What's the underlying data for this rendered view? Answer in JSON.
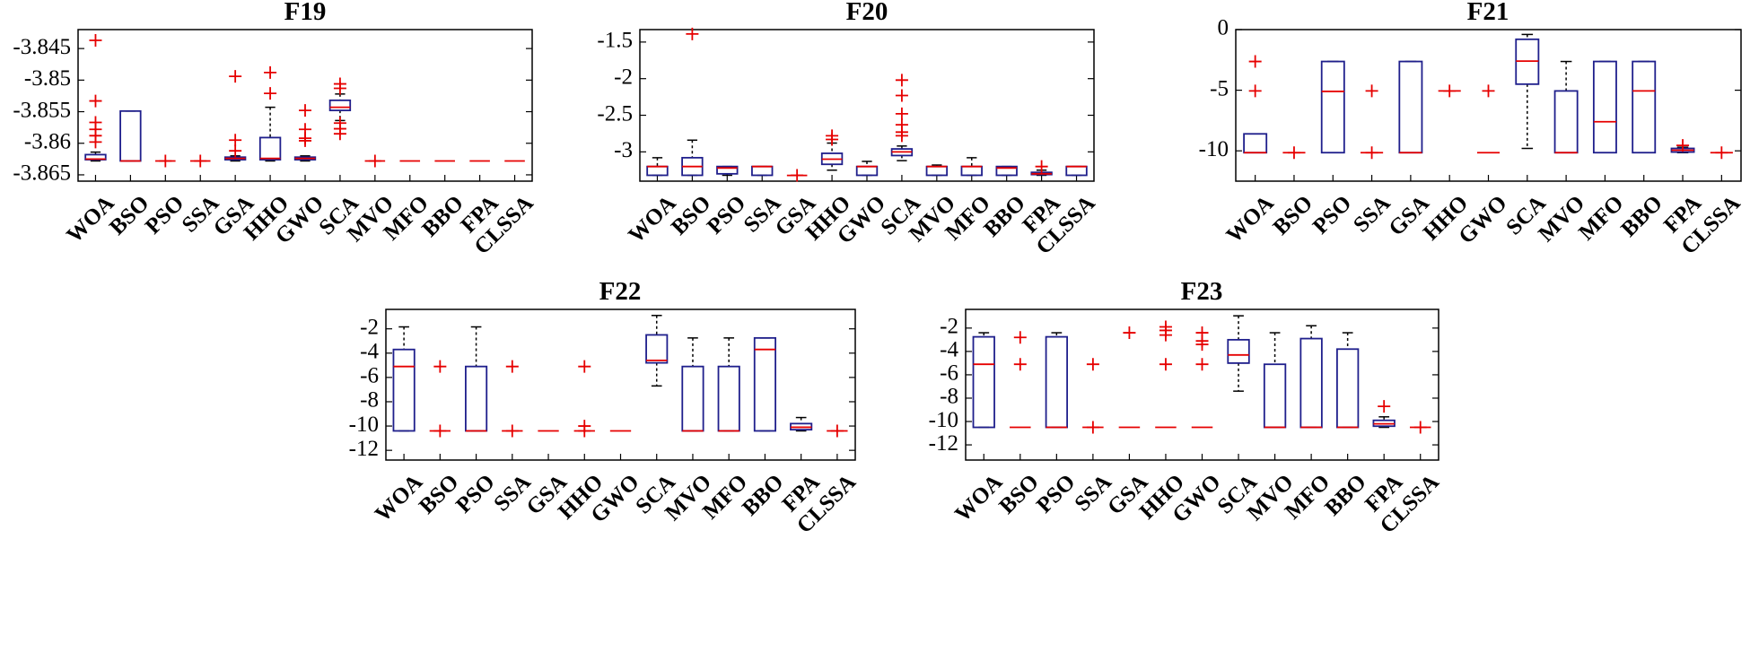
{
  "chart_data": [
    {
      "type": "boxplot",
      "title": "F19",
      "categories": [
        "WOA",
        "BSO",
        "PSO",
        "SSA",
        "GSA",
        "HHO",
        "GWO",
        "SCA",
        "MVO",
        "MFO",
        "BBO",
        "FPA",
        "CLSSA"
      ],
      "ylim": [
        -3.866,
        -3.842
      ],
      "yticks": [
        -3.845,
        -3.85,
        -3.855,
        -3.86,
        -3.865
      ],
      "ytick_labels": [
        "-3.845",
        "-3.85",
        "-3.855",
        "-3.86",
        "-3.865"
      ],
      "boxes": [
        {
          "q1": -3.8626,
          "med": -3.8625,
          "q3": -3.8618,
          "wlo": -3.8628,
          "whi": -3.8614,
          "out": [
            -3.8437,
            -3.8533,
            -3.8567,
            -3.8578,
            -3.8588,
            -3.8598
          ]
        },
        {
          "q1": -3.8628,
          "med": -3.8628,
          "q3": -3.8549,
          "wlo": -3.8628,
          "whi": -3.8549,
          "out": []
        },
        {
          "q1": -3.8628,
          "med": -3.8628,
          "q3": -3.8628,
          "wlo": -3.8628,
          "whi": -3.8628,
          "out": [
            -3.8628
          ]
        },
        {
          "q1": -3.8628,
          "med": -3.8628,
          "q3": -3.8628,
          "wlo": -3.8628,
          "whi": -3.8628,
          "out": [
            -3.8628
          ]
        },
        {
          "q1": -3.8626,
          "med": -3.8624,
          "q3": -3.8622,
          "wlo": -3.8628,
          "whi": -3.862,
          "out": [
            -3.8494,
            -3.8595,
            -3.8612
          ]
        },
        {
          "q1": -3.8626,
          "med": -3.8624,
          "q3": -3.8591,
          "wlo": -3.8628,
          "whi": -3.8543,
          "out": [
            -3.8488,
            -3.8521
          ]
        },
        {
          "q1": -3.8626,
          "med": -3.8624,
          "q3": -3.8622,
          "wlo": -3.8628,
          "whi": -3.862,
          "out": [
            -3.8548,
            -3.8578,
            -3.8592,
            -3.8596
          ]
        },
        {
          "q1": -3.8548,
          "med": -3.8543,
          "q3": -3.8532,
          "wlo": -3.8564,
          "whi": -3.8522,
          "out": [
            -3.8506,
            -3.8513,
            -3.8568,
            -3.8577,
            -3.8585
          ]
        },
        {
          "q1": -3.8628,
          "med": -3.8628,
          "q3": -3.8628,
          "wlo": -3.8628,
          "whi": -3.8628,
          "out": [
            -3.8628
          ]
        },
        {
          "q1": -3.8628,
          "med": -3.8628,
          "q3": -3.8628,
          "wlo": -3.8628,
          "whi": -3.8628,
          "out": []
        },
        {
          "q1": -3.8628,
          "med": -3.8628,
          "q3": -3.8628,
          "wlo": -3.8628,
          "whi": -3.8628,
          "out": []
        },
        {
          "q1": -3.8628,
          "med": -3.8628,
          "q3": -3.8628,
          "wlo": -3.8628,
          "whi": -3.8628,
          "out": []
        },
        {
          "q1": -3.8628,
          "med": -3.8628,
          "q3": -3.8628,
          "wlo": -3.8628,
          "whi": -3.8628,
          "out": []
        }
      ]
    },
    {
      "type": "boxplot",
      "title": "F20",
      "categories": [
        "WOA",
        "BSO",
        "PSO",
        "SSA",
        "GSA",
        "HHO",
        "GWO",
        "SCA",
        "MVO",
        "MFO",
        "BBO",
        "FPA",
        "CLSSA"
      ],
      "ylim": [
        -3.4,
        -1.33
      ],
      "yticks": [
        -1.5,
        -2,
        -2.5,
        -3
      ],
      "ytick_labels": [
        "-1.5",
        "-2",
        "-2.5",
        "-3"
      ],
      "boxes": [
        {
          "q1": -3.32,
          "med": -3.2,
          "q3": -3.2,
          "wlo": -3.32,
          "whi": -3.08,
          "out": []
        },
        {
          "q1": -3.32,
          "med": -3.2,
          "q3": -3.08,
          "wlo": -3.32,
          "whi": -2.84,
          "out": [
            -1.39
          ]
        },
        {
          "q1": -3.3,
          "med": -3.22,
          "q3": -3.2,
          "wlo": -3.32,
          "whi": -3.2,
          "out": []
        },
        {
          "q1": -3.32,
          "med": -3.2,
          "q3": -3.2,
          "wlo": -3.32,
          "whi": -3.2,
          "out": []
        },
        {
          "q1": -3.322,
          "med": -3.322,
          "q3": -3.322,
          "wlo": -3.322,
          "whi": -3.322,
          "out": [
            -3.32
          ]
        },
        {
          "q1": -3.17,
          "med": -3.1,
          "q3": -3.02,
          "wlo": -3.25,
          "whi": -2.88,
          "out": [
            -2.78,
            -2.83
          ]
        },
        {
          "q1": -3.32,
          "med": -3.2,
          "q3": -3.2,
          "wlo": -3.32,
          "whi": -3.13,
          "out": []
        },
        {
          "q1": -3.05,
          "med": -3.0,
          "q3": -2.96,
          "wlo": -3.12,
          "whi": -2.92,
          "out": [
            -2.02,
            -2.23,
            -2.48,
            -2.63,
            -2.73,
            -2.78
          ]
        },
        {
          "q1": -3.32,
          "med": -3.2,
          "q3": -3.2,
          "wlo": -3.32,
          "whi": -3.18,
          "out": []
        },
        {
          "q1": -3.32,
          "med": -3.2,
          "q3": -3.2,
          "wlo": -3.32,
          "whi": -3.08,
          "out": []
        },
        {
          "q1": -3.32,
          "med": -3.22,
          "q3": -3.2,
          "wlo": -3.32,
          "whi": -3.2,
          "out": []
        },
        {
          "q1": -3.31,
          "med": -3.3,
          "q3": -3.28,
          "wlo": -3.32,
          "whi": -3.25,
          "out": [
            -3.2
          ]
        },
        {
          "q1": -3.32,
          "med": -3.2,
          "q3": -3.2,
          "wlo": -3.32,
          "whi": -3.2,
          "out": []
        }
      ]
    },
    {
      "type": "boxplot",
      "title": "F21",
      "categories": [
        "WOA",
        "BSO",
        "PSO",
        "SSA",
        "GSA",
        "HHO",
        "GWO",
        "SCA",
        "MVO",
        "MFO",
        "BBO",
        "FPA",
        "CLSSA"
      ],
      "ylim": [
        -12.5,
        0
      ],
      "yticks": [
        0,
        -5,
        -10
      ],
      "ytick_labels": [
        "0",
        "-5",
        "-10"
      ],
      "boxes": [
        {
          "q1": -10.15,
          "med": -10.15,
          "q3": -8.6,
          "wlo": -10.15,
          "whi": -8.6,
          "out": [
            -2.63,
            -5.06
          ]
        },
        {
          "q1": -10.15,
          "med": -10.15,
          "q3": -10.15,
          "wlo": -10.15,
          "whi": -10.15,
          "out": [
            -10.15
          ]
        },
        {
          "q1": -10.15,
          "med": -5.1,
          "q3": -2.63,
          "wlo": -10.15,
          "whi": -2.63,
          "out": []
        },
        {
          "q1": -10.15,
          "med": -10.15,
          "q3": -10.15,
          "wlo": -10.15,
          "whi": -10.15,
          "out": [
            -5.06,
            -10.15
          ]
        },
        {
          "q1": -10.15,
          "med": -10.15,
          "q3": -2.63,
          "wlo": -10.15,
          "whi": -2.63,
          "out": []
        },
        {
          "q1": -5.06,
          "med": -5.06,
          "q3": -5.06,
          "wlo": -5.06,
          "whi": -5.06,
          "out": [
            -5.06
          ]
        },
        {
          "q1": -10.15,
          "med": -10.15,
          "q3": -10.15,
          "wlo": -10.15,
          "whi": -10.15,
          "out": [
            -5.06
          ]
        },
        {
          "q1": -4.5,
          "med": -2.6,
          "q3": -0.8,
          "wlo": -9.8,
          "whi": -0.4,
          "out": []
        },
        {
          "q1": -10.15,
          "med": -10.15,
          "q3": -5.06,
          "wlo": -10.15,
          "whi": -2.63,
          "out": []
        },
        {
          "q1": -10.15,
          "med": -7.6,
          "q3": -2.63,
          "wlo": -10.15,
          "whi": -2.63,
          "out": []
        },
        {
          "q1": -10.15,
          "med": -5.06,
          "q3": -2.63,
          "wlo": -10.15,
          "whi": -2.63,
          "out": []
        },
        {
          "q1": -10.1,
          "med": -9.95,
          "q3": -9.8,
          "wlo": -10.15,
          "whi": -9.7,
          "out": [
            -9.55
          ]
        },
        {
          "q1": -10.15,
          "med": -10.15,
          "q3": -10.15,
          "wlo": -10.15,
          "whi": -10.15,
          "out": [
            -10.15
          ]
        }
      ]
    },
    {
      "type": "boxplot",
      "title": "F22",
      "categories": [
        "WOA",
        "BSO",
        "PSO",
        "SSA",
        "GSA",
        "HHO",
        "GWO",
        "SCA",
        "MVO",
        "MFO",
        "BBO",
        "FPA",
        "CLSSA"
      ],
      "ylim": [
        -12.8,
        -0.4
      ],
      "yticks": [
        -2,
        -4,
        -6,
        -8,
        -10,
        -12
      ],
      "ytick_labels": [
        "-2",
        "-4",
        "-6",
        "-8",
        "-10",
        "-12"
      ],
      "boxes": [
        {
          "q1": -10.4,
          "med": -5.1,
          "q3": -3.7,
          "wlo": -10.4,
          "whi": -1.84,
          "out": []
        },
        {
          "q1": -10.4,
          "med": -10.4,
          "q3": -10.4,
          "wlo": -10.4,
          "whi": -10.4,
          "out": [
            -5.1,
            -10.4
          ]
        },
        {
          "q1": -10.4,
          "med": -10.4,
          "q3": -5.1,
          "wlo": -10.4,
          "whi": -1.84,
          "out": []
        },
        {
          "q1": -10.4,
          "med": -10.4,
          "q3": -10.4,
          "wlo": -10.4,
          "whi": -10.4,
          "out": [
            -5.1,
            -10.4
          ]
        },
        {
          "q1": -10.4,
          "med": -10.4,
          "q3": -10.4,
          "wlo": -10.4,
          "whi": -10.4,
          "out": []
        },
        {
          "q1": -10.4,
          "med": -10.4,
          "q3": -10.4,
          "wlo": -10.4,
          "whi": -10.4,
          "out": [
            -5.1,
            -10.0,
            -10.4
          ]
        },
        {
          "q1": -10.4,
          "med": -10.4,
          "q3": -10.4,
          "wlo": -10.4,
          "whi": -10.4,
          "out": []
        },
        {
          "q1": -4.8,
          "med": -4.6,
          "q3": -2.5,
          "wlo": -6.7,
          "whi": -0.9,
          "out": []
        },
        {
          "q1": -10.4,
          "med": -10.4,
          "q3": -5.1,
          "wlo": -10.4,
          "whi": -2.75,
          "out": []
        },
        {
          "q1": -10.4,
          "med": -10.4,
          "q3": -5.1,
          "wlo": -10.4,
          "whi": -2.75,
          "out": []
        },
        {
          "q1": -10.4,
          "med": -3.7,
          "q3": -2.75,
          "wlo": -10.4,
          "whi": -2.75,
          "out": []
        },
        {
          "q1": -10.3,
          "med": -10.1,
          "q3": -9.8,
          "wlo": -10.4,
          "whi": -9.3,
          "out": []
        },
        {
          "q1": -10.4,
          "med": -10.4,
          "q3": -10.4,
          "wlo": -10.4,
          "whi": -10.4,
          "out": [
            -10.4
          ]
        }
      ]
    },
    {
      "type": "boxplot",
      "title": "F23",
      "categories": [
        "WOA",
        "BSO",
        "PSO",
        "SSA",
        "GSA",
        "HHO",
        "GWO",
        "SCA",
        "MVO",
        "MFO",
        "BBO",
        "FPA",
        "CLSSA"
      ],
      "ylim": [
        -13.3,
        -0.4
      ],
      "yticks": [
        -2,
        -4,
        -6,
        -8,
        -10,
        -12
      ],
      "ytick_labels": [
        "-2",
        "-4",
        "-6",
        "-8",
        "-10",
        "-12"
      ],
      "boxes": [
        {
          "q1": -10.5,
          "med": -5.1,
          "q3": -2.75,
          "wlo": -10.5,
          "whi": -2.4,
          "out": []
        },
        {
          "q1": -10.5,
          "med": -10.5,
          "q3": -10.5,
          "wlo": -10.5,
          "whi": -10.5,
          "out": [
            -2.8,
            -5.1
          ]
        },
        {
          "q1": -10.5,
          "med": -10.5,
          "q3": -2.75,
          "wlo": -10.5,
          "whi": -2.4,
          "out": []
        },
        {
          "q1": -10.5,
          "med": -10.5,
          "q3": -10.5,
          "wlo": -10.5,
          "whi": -10.5,
          "out": [
            -5.1,
            -10.5
          ]
        },
        {
          "q1": -10.5,
          "med": -10.5,
          "q3": -10.5,
          "wlo": -10.5,
          "whi": -10.5,
          "out": [
            -2.4
          ]
        },
        {
          "q1": -10.5,
          "med": -10.5,
          "q3": -10.5,
          "wlo": -10.5,
          "whi": -10.5,
          "out": [
            -1.9,
            -2.2,
            -2.6,
            -5.1
          ]
        },
        {
          "q1": -10.5,
          "med": -10.5,
          "q3": -10.5,
          "wlo": -10.5,
          "whi": -10.5,
          "out": [
            -2.4,
            -3.1,
            -3.4,
            -5.1
          ]
        },
        {
          "q1": -5.0,
          "med": -4.3,
          "q3": -3.0,
          "wlo": -7.4,
          "whi": -0.95,
          "out": []
        },
        {
          "q1": -10.5,
          "med": -10.5,
          "q3": -5.1,
          "wlo": -10.5,
          "whi": -2.4,
          "out": []
        },
        {
          "q1": -10.5,
          "med": -10.5,
          "q3": -2.9,
          "wlo": -10.5,
          "whi": -1.8,
          "out": []
        },
        {
          "q1": -10.5,
          "med": -10.5,
          "q3": -3.8,
          "wlo": -10.5,
          "whi": -2.4,
          "out": []
        },
        {
          "q1": -10.4,
          "med": -10.2,
          "q3": -9.9,
          "wlo": -10.5,
          "whi": -9.6,
          "out": [
            -8.7
          ]
        },
        {
          "q1": -10.5,
          "med": -10.5,
          "q3": -10.5,
          "wlo": -10.5,
          "whi": -10.5,
          "out": [
            -10.5
          ]
        }
      ]
    }
  ],
  "colors": {
    "box": "#1f1f8c",
    "median": "#e60000",
    "outlier": "#e60000",
    "whisker": "#000000",
    "axis": "#000000"
  }
}
